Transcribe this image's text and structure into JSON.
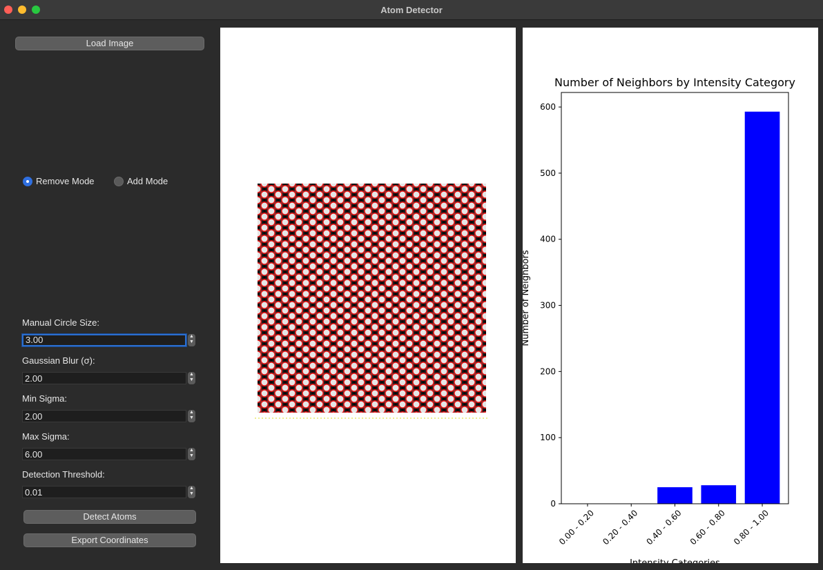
{
  "window": {
    "title": "Atom Detector"
  },
  "sidebar": {
    "load_label": "Load Image",
    "modes": [
      {
        "label": "Remove Mode",
        "selected": true
      },
      {
        "label": "Add Mode",
        "selected": false
      }
    ],
    "fields": [
      {
        "label": "Manual Circle Size:",
        "value": "3.00"
      },
      {
        "label": "Gaussian Blur (σ):",
        "value": "2.00"
      },
      {
        "label": "Min Sigma:",
        "value": "2.00"
      },
      {
        "label": "Max Sigma:",
        "value": "6.00"
      },
      {
        "label": "Detection Threshold:",
        "value": "0.01"
      }
    ],
    "detect_label": "Detect Atoms",
    "export_label": "Export Coordinates"
  },
  "chart_data": {
    "type": "bar",
    "title": "Number of Neighbors by Intensity Category",
    "xlabel": "Intensity Categories",
    "ylabel": "Number of Neighbors",
    "categories": [
      "0.00 - 0.20",
      "0.20 - 0.40",
      "0.40 - 0.60",
      "0.60 - 0.80",
      "0.80 - 1.00"
    ],
    "values": [
      0,
      0,
      25,
      28,
      593
    ],
    "yticks": [
      0,
      100,
      200,
      300,
      400,
      500,
      600
    ],
    "ylim": [
      0,
      622
    ],
    "bar_color": "#0000ff",
    "grid": false
  }
}
